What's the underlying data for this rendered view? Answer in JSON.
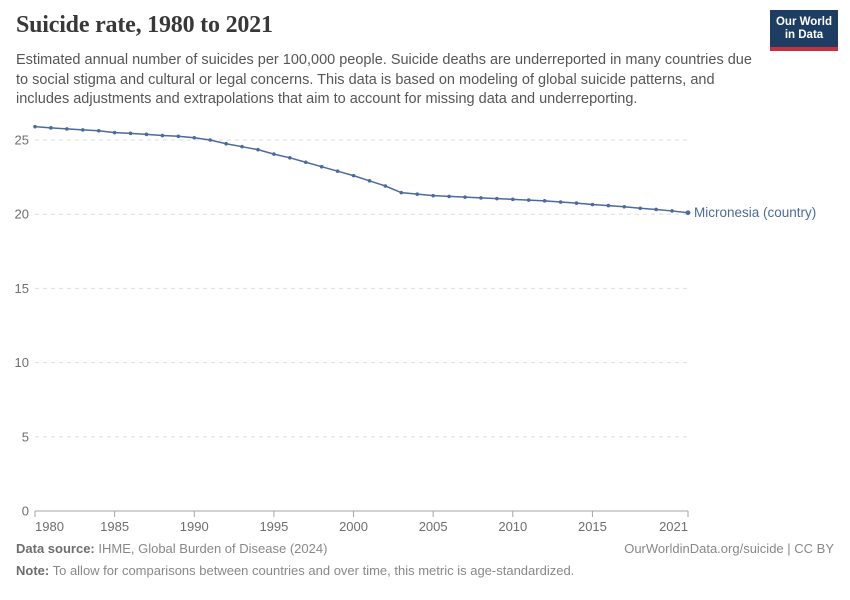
{
  "header": {
    "title": "Suicide rate, 1980 to 2021",
    "subtitle": "Estimated annual number of suicides per 100,000 people. Suicide deaths are underreported in many countries due to social stigma and cultural or legal concerns. This data is based on modeling of global suicide patterns, and includes adjustments and extrapolations that aim to account for missing data and underreporting."
  },
  "logo": {
    "line1": "Our World",
    "line2": "in Data",
    "bg_color": "#1d3d63",
    "accent_color": "#c8303e"
  },
  "chart_data": {
    "type": "line",
    "title": "Suicide rate, 1980 to 2021",
    "xlabel": "",
    "ylabel": "",
    "ylim": [
      0,
      25
    ],
    "yticks": [
      0,
      5,
      10,
      15,
      20,
      25
    ],
    "xticks": [
      1980,
      1985,
      1990,
      1995,
      2000,
      2005,
      2010,
      2015,
      2021
    ],
    "x_range": [
      1980,
      2021
    ],
    "grid": "horizontal-dashed",
    "legend_position": "end-of-line",
    "colors": {
      "line": "#4C6A9C",
      "gridline": "#dddddd",
      "axis": "#a5a5a5",
      "tick_label": "#6e6e6e"
    },
    "series": [
      {
        "name": "Micronesia (country)",
        "color": "#4C6A9C",
        "x": [
          1980,
          1981,
          1982,
          1983,
          1984,
          1985,
          1986,
          1987,
          1988,
          1989,
          1990,
          1991,
          1992,
          1993,
          1994,
          1995,
          1996,
          1997,
          1998,
          1999,
          2000,
          2001,
          2002,
          2003,
          2004,
          2005,
          2006,
          2007,
          2008,
          2009,
          2010,
          2011,
          2012,
          2013,
          2014,
          2015,
          2016,
          2017,
          2018,
          2019,
          2020,
          2021
        ],
        "values": [
          25.9,
          25.82,
          25.75,
          25.68,
          25.62,
          25.5,
          25.45,
          25.38,
          25.3,
          25.25,
          25.15,
          25.0,
          24.75,
          24.55,
          24.35,
          24.05,
          23.8,
          23.5,
          23.2,
          22.9,
          22.6,
          22.25,
          21.9,
          21.45,
          21.35,
          21.25,
          21.2,
          21.15,
          21.1,
          21.05,
          21.0,
          20.95,
          20.9,
          20.82,
          20.75,
          20.65,
          20.58,
          20.5,
          20.4,
          20.32,
          20.22,
          20.1
        ]
      }
    ]
  },
  "footer": {
    "datasource_label": "Data source:",
    "datasource_text": " IHME, Global Burden of Disease (2024)",
    "link_text": "OurWorldinData.org/suicide | CC BY",
    "note_label": "Note:",
    "note_text": " To allow for comparisons between countries and over time, this metric is age-standardized."
  }
}
